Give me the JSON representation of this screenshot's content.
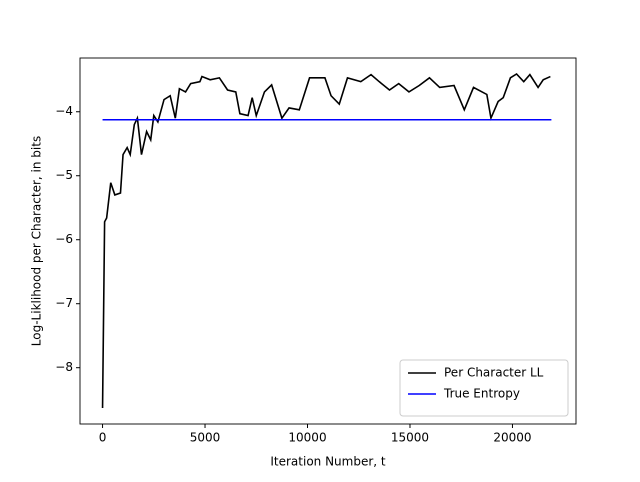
{
  "chart_data": {
    "type": "line",
    "x_label": "Iteration Number, t",
    "y_label": "Log-Liklihood per Character, in bits",
    "xlim": [
      -1100,
      23100
    ],
    "ylim": [
      -8.88,
      -3.16
    ],
    "xticks": [
      0,
      5000,
      10000,
      15000,
      20000
    ],
    "yticks": [
      {
        "value": -8,
        "label": "−8"
      },
      {
        "value": -7,
        "label": "−7"
      },
      {
        "value": -6,
        "label": "−6"
      },
      {
        "value": -5,
        "label": "−5"
      },
      {
        "value": -4,
        "label": "−4"
      }
    ],
    "legend": "lower right",
    "series": [
      {
        "name": "Per Character LL",
        "color": "#000000",
        "x": [
          0,
          100,
          200,
          400,
          600,
          875,
          1000,
          1200,
          1350,
          1550,
          1700,
          1900,
          2150,
          2350,
          2500,
          2700,
          3000,
          3300,
          3550,
          3750,
          4050,
          4300,
          4750,
          4850,
          5250,
          5700,
          6100,
          6500,
          6700,
          7100,
          7300,
          7500,
          7900,
          8250,
          8750,
          9100,
          9600,
          10100,
          10850,
          11150,
          11550,
          11950,
          12600,
          13100,
          13500,
          14000,
          14450,
          14950,
          15450,
          15950,
          16450,
          17150,
          17650,
          18100,
          18750,
          18950,
          19300,
          19550,
          19900,
          20200,
          20550,
          20850,
          21250,
          21500,
          21850
        ],
        "values": [
          -8.63,
          -5.72,
          -5.66,
          -5.11,
          -5.3,
          -5.27,
          -4.67,
          -4.56,
          -4.67,
          -4.2,
          -4.1,
          -4.67,
          -4.31,
          -4.44,
          -4.06,
          -4.16,
          -3.81,
          -3.75,
          -4.1,
          -3.64,
          -3.69,
          -3.56,
          -3.53,
          -3.45,
          -3.5,
          -3.47,
          -3.66,
          -3.69,
          -4.03,
          -4.06,
          -3.78,
          -4.06,
          -3.69,
          -3.58,
          -4.1,
          -3.94,
          -3.97,
          -3.47,
          -3.47,
          -3.75,
          -3.88,
          -3.47,
          -3.53,
          -3.42,
          -3.53,
          -3.66,
          -3.56,
          -3.69,
          -3.59,
          -3.47,
          -3.62,
          -3.59,
          -3.97,
          -3.62,
          -3.73,
          -4.1,
          -3.84,
          -3.78,
          -3.47,
          -3.41,
          -3.53,
          -3.42,
          -3.62,
          -3.5,
          -3.45
        ]
      },
      {
        "name": "True Entropy",
        "color": "#0000ff",
        "x": [
          0,
          21900
        ],
        "values": [
          -4.125,
          -4.125
        ]
      }
    ]
  }
}
